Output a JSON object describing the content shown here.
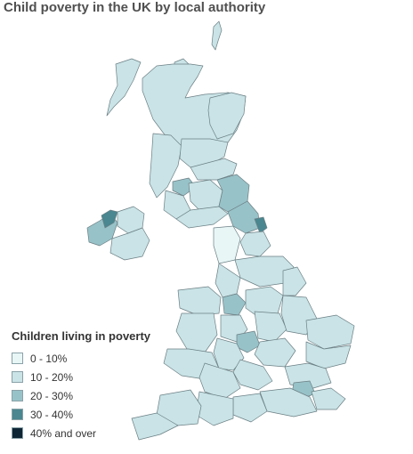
{
  "title": "Child poverty in the UK by local authority",
  "legend": {
    "title": "Children living in poverty",
    "items": [
      {
        "label": "0 - 10%",
        "color": "#e8f6f6"
      },
      {
        "label": "10 - 20%",
        "color": "#c9e3e6"
      },
      {
        "label": "20 - 30%",
        "color": "#97c2c8"
      },
      {
        "label": "30 - 40%",
        "color": "#4a8790"
      },
      {
        "label": "40% and over",
        "color": "#0e2536"
      }
    ]
  },
  "colors": {
    "border": "#6b7f84",
    "background": "#ffffff",
    "title": "#505050"
  }
}
